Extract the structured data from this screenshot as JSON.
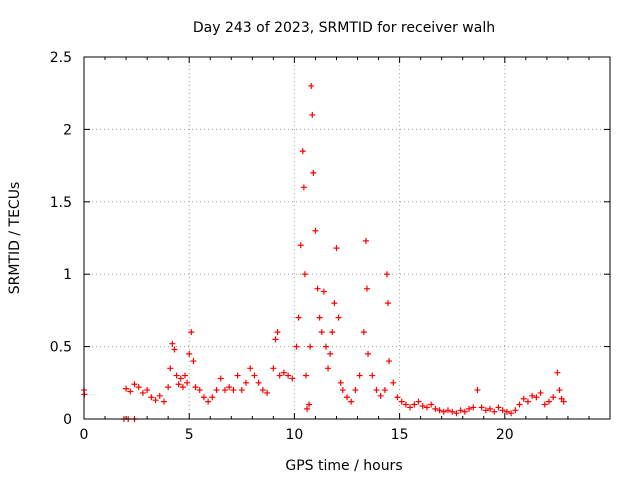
{
  "chart_data": {
    "type": "scatter",
    "title": "Day 243 of 2023, SRMTID for receiver walh",
    "xlabel": "GPS time / hours",
    "ylabel": "SRMTID / TECUs",
    "xlim": [
      0,
      25
    ],
    "ylim": [
      0,
      2.5
    ],
    "x_ticks": [
      0,
      5,
      10,
      15,
      20
    ],
    "y_ticks": [
      0,
      0.5,
      1,
      1.5,
      2,
      2.5
    ],
    "x_tick_labels": [
      "0",
      "5",
      "10",
      "15",
      "20"
    ],
    "y_tick_labels": [
      "0",
      "0.5",
      "1",
      "1.5",
      "2",
      "2.5"
    ],
    "grid": true,
    "marker": "+",
    "marker_color": "#ff0000",
    "series": [
      {
        "name": "walh",
        "points": [
          [
            0.0,
            0.2
          ],
          [
            0.02,
            0.17
          ],
          [
            1.9,
            0.0
          ],
          [
            2.1,
            0.0
          ],
          [
            2.4,
            0.0
          ],
          [
            2.0,
            0.21
          ],
          [
            2.2,
            0.19
          ],
          [
            2.4,
            0.24
          ],
          [
            2.6,
            0.22
          ],
          [
            2.8,
            0.18
          ],
          [
            3.0,
            0.2
          ],
          [
            3.2,
            0.15
          ],
          [
            3.4,
            0.13
          ],
          [
            3.6,
            0.16
          ],
          [
            3.8,
            0.12
          ],
          [
            4.0,
            0.22
          ],
          [
            4.1,
            0.35
          ],
          [
            4.2,
            0.52
          ],
          [
            4.3,
            0.48
          ],
          [
            4.4,
            0.3
          ],
          [
            4.5,
            0.24
          ],
          [
            4.6,
            0.28
          ],
          [
            4.7,
            0.22
          ],
          [
            4.8,
            0.3
          ],
          [
            4.9,
            0.25
          ],
          [
            5.0,
            0.45
          ],
          [
            5.1,
            0.6
          ],
          [
            5.2,
            0.4
          ],
          [
            5.3,
            0.22
          ],
          [
            5.5,
            0.2
          ],
          [
            5.7,
            0.15
          ],
          [
            5.9,
            0.12
          ],
          [
            6.1,
            0.15
          ],
          [
            6.3,
            0.2
          ],
          [
            6.5,
            0.28
          ],
          [
            6.7,
            0.2
          ],
          [
            6.9,
            0.22
          ],
          [
            7.1,
            0.2
          ],
          [
            7.3,
            0.3
          ],
          [
            7.5,
            0.2
          ],
          [
            7.7,
            0.25
          ],
          [
            7.9,
            0.35
          ],
          [
            8.1,
            0.3
          ],
          [
            8.3,
            0.25
          ],
          [
            8.5,
            0.2
          ],
          [
            8.7,
            0.18
          ],
          [
            9.0,
            0.35
          ],
          [
            9.1,
            0.55
          ],
          [
            9.2,
            0.6
          ],
          [
            9.3,
            0.3
          ],
          [
            9.5,
            0.32
          ],
          [
            9.7,
            0.3
          ],
          [
            9.9,
            0.28
          ],
          [
            10.1,
            0.5
          ],
          [
            10.2,
            0.7
          ],
          [
            10.3,
            1.2
          ],
          [
            10.4,
            1.85
          ],
          [
            10.45,
            1.6
          ],
          [
            10.5,
            1.0
          ],
          [
            10.55,
            0.3
          ],
          [
            10.6,
            0.07
          ],
          [
            10.7,
            0.1
          ],
          [
            10.75,
            0.5
          ],
          [
            10.8,
            2.3
          ],
          [
            10.85,
            2.1
          ],
          [
            10.9,
            1.7
          ],
          [
            11.0,
            1.3
          ],
          [
            11.1,
            0.9
          ],
          [
            11.2,
            0.7
          ],
          [
            11.3,
            0.6
          ],
          [
            11.4,
            0.88
          ],
          [
            11.5,
            0.5
          ],
          [
            11.6,
            0.35
          ],
          [
            11.7,
            0.45
          ],
          [
            11.8,
            0.6
          ],
          [
            11.9,
            0.8
          ],
          [
            12.0,
            1.18
          ],
          [
            12.1,
            0.7
          ],
          [
            12.2,
            0.25
          ],
          [
            12.3,
            0.2
          ],
          [
            12.5,
            0.15
          ],
          [
            12.7,
            0.12
          ],
          [
            12.9,
            0.2
          ],
          [
            13.1,
            0.3
          ],
          [
            13.3,
            0.6
          ],
          [
            13.4,
            1.23
          ],
          [
            13.45,
            0.9
          ],
          [
            13.5,
            0.45
          ],
          [
            13.7,
            0.3
          ],
          [
            13.9,
            0.2
          ],
          [
            14.1,
            0.16
          ],
          [
            14.3,
            0.2
          ],
          [
            14.4,
            1.0
          ],
          [
            14.45,
            0.8
          ],
          [
            14.5,
            0.4
          ],
          [
            14.7,
            0.25
          ],
          [
            14.9,
            0.15
          ],
          [
            15.1,
            0.12
          ],
          [
            15.3,
            0.1
          ],
          [
            15.5,
            0.08
          ],
          [
            15.7,
            0.1
          ],
          [
            15.9,
            0.12
          ],
          [
            16.1,
            0.09
          ],
          [
            16.3,
            0.08
          ],
          [
            16.5,
            0.1
          ],
          [
            16.7,
            0.07
          ],
          [
            16.9,
            0.06
          ],
          [
            17.1,
            0.05
          ],
          [
            17.3,
            0.06
          ],
          [
            17.5,
            0.05
          ],
          [
            17.7,
            0.04
          ],
          [
            17.9,
            0.06
          ],
          [
            18.1,
            0.05
          ],
          [
            18.3,
            0.07
          ],
          [
            18.5,
            0.08
          ],
          [
            18.7,
            0.2
          ],
          [
            18.9,
            0.08
          ],
          [
            19.1,
            0.06
          ],
          [
            19.3,
            0.07
          ],
          [
            19.5,
            0.05
          ],
          [
            19.7,
            0.08
          ],
          [
            19.9,
            0.06
          ],
          [
            20.1,
            0.05
          ],
          [
            20.3,
            0.04
          ],
          [
            20.5,
            0.06
          ],
          [
            20.7,
            0.1
          ],
          [
            20.9,
            0.14
          ],
          [
            21.1,
            0.12
          ],
          [
            21.3,
            0.16
          ],
          [
            21.5,
            0.15
          ],
          [
            21.7,
            0.18
          ],
          [
            21.9,
            0.1
          ],
          [
            22.1,
            0.12
          ],
          [
            22.3,
            0.15
          ],
          [
            22.5,
            0.32
          ],
          [
            22.6,
            0.2
          ],
          [
            22.7,
            0.14
          ],
          [
            22.8,
            0.12
          ]
        ]
      }
    ]
  }
}
